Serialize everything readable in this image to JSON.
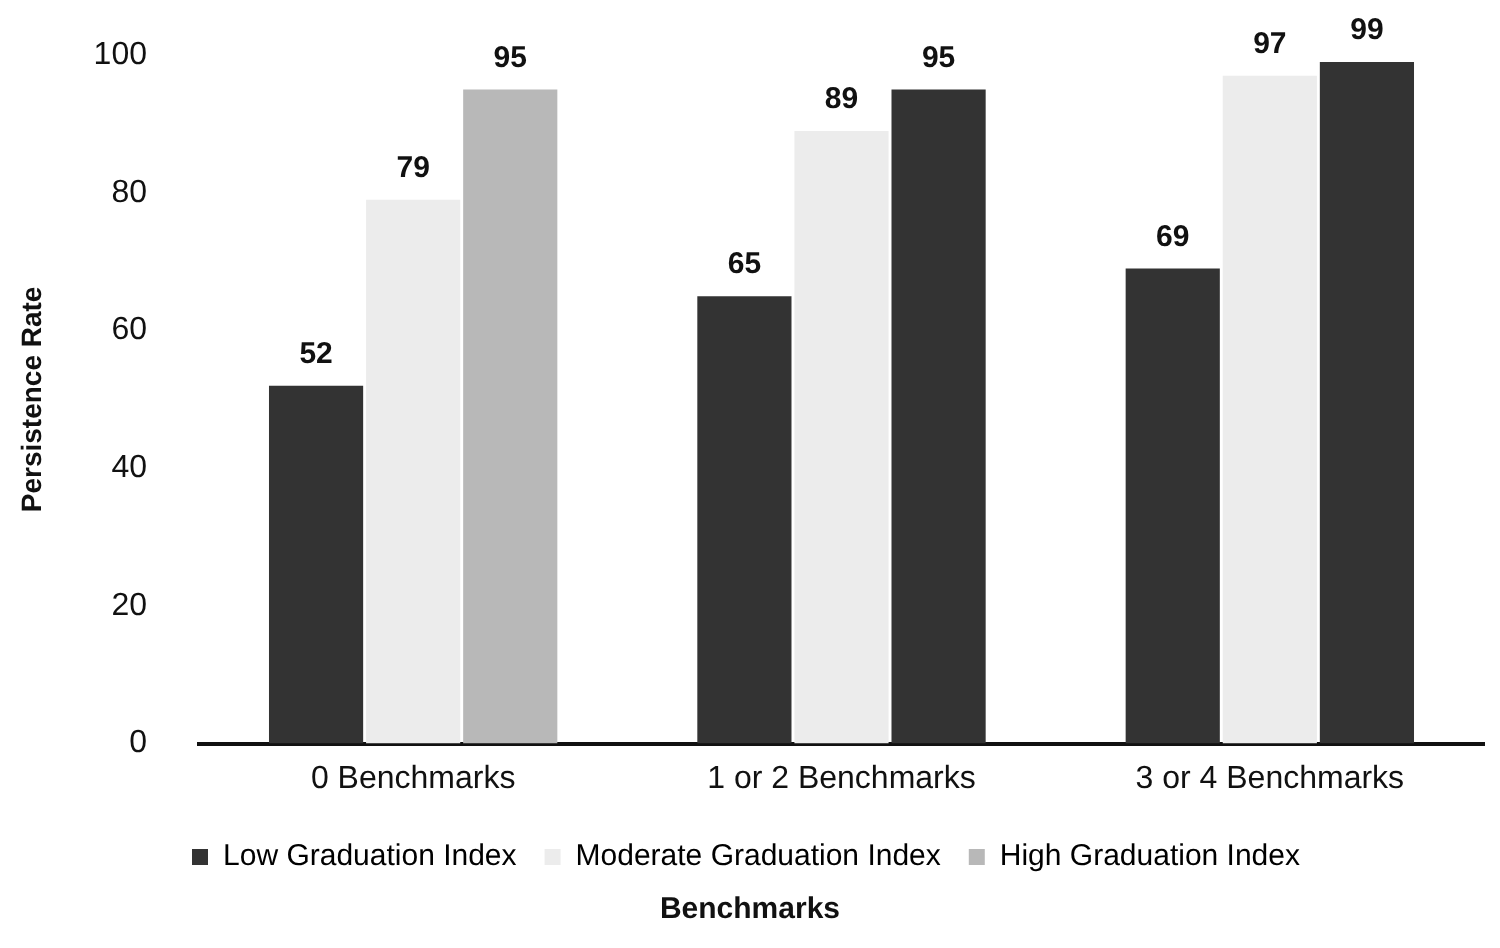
{
  "chart_data": {
    "type": "bar",
    "xlabel": "Benchmarks",
    "ylabel": "Persistence Rate",
    "categories": [
      "0 Benchmarks",
      "1 or 2 Benchmarks",
      "3 or 4 Benchmarks"
    ],
    "series": [
      {
        "name": "Low Graduation Index",
        "color": "#333333",
        "values": [
          52,
          65,
          69
        ]
      },
      {
        "name": "Moderate Graduation Index",
        "color": "#ececec",
        "values": [
          79,
          89,
          97
        ]
      },
      {
        "name": "High Graduation Index",
        "colors": [
          "#b8b8b8",
          "#333333",
          "#333333"
        ],
        "values": [
          95,
          95,
          99
        ]
      }
    ],
    "ylim": [
      0,
      100
    ],
    "yticks": [
      0,
      20,
      40,
      60,
      80,
      100
    ],
    "grid": false,
    "legend": "bottom",
    "data_labels": true
  }
}
